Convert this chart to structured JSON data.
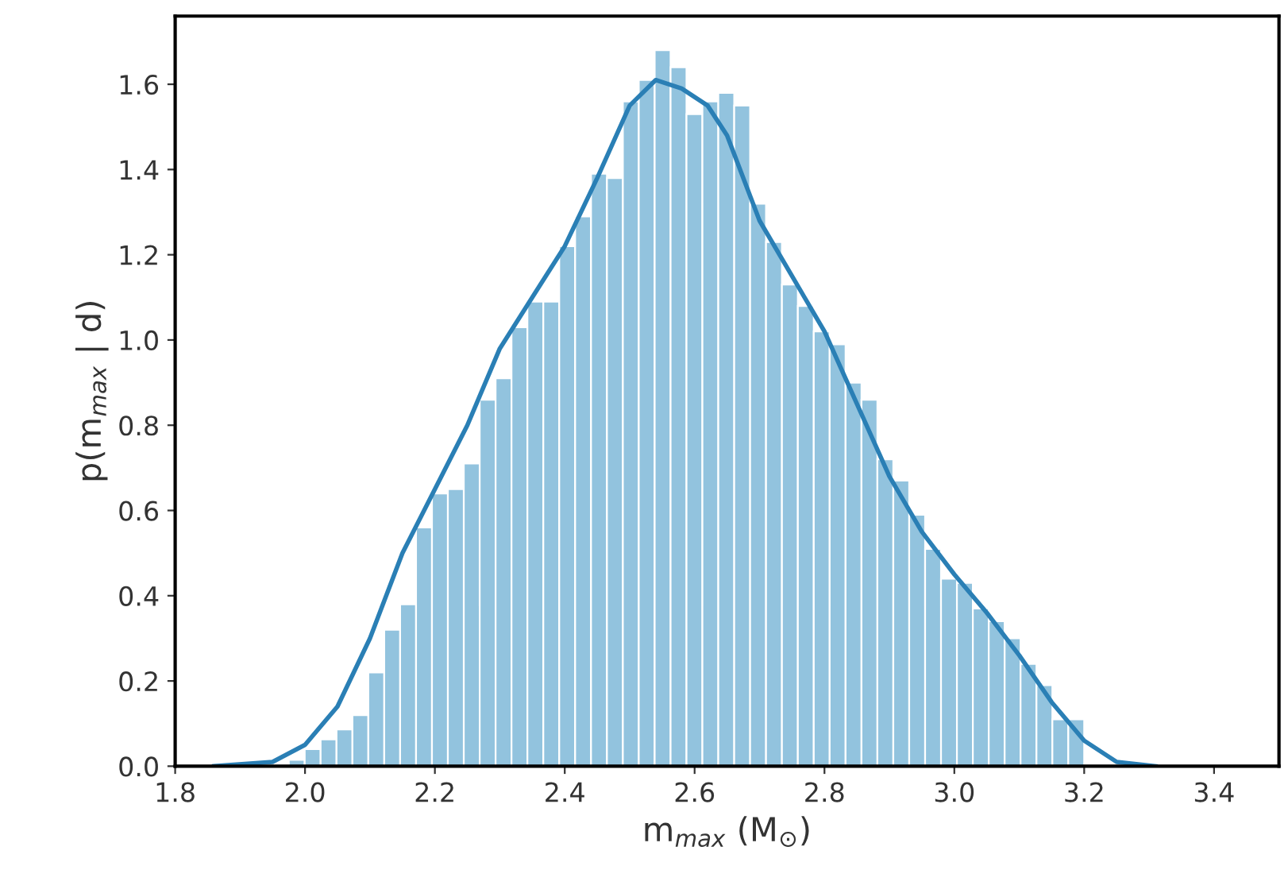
{
  "chart_data": {
    "type": "histogram",
    "xlabel": "m$_{max}$ (M$_{⊙}$)",
    "ylabel": "p(m$_{max}$ | d)",
    "bins": [
      1.975,
      1.9995,
      2.024,
      2.0485,
      2.073,
      2.0975,
      2.122,
      2.1465,
      2.171,
      2.1955,
      2.22,
      2.2445,
      2.269,
      2.2935,
      2.318,
      2.3425,
      2.367,
      2.3915,
      2.416,
      2.4405,
      2.465,
      2.4895,
      2.514,
      2.5385,
      2.563,
      2.5875,
      2.612,
      2.6365,
      2.661,
      2.6855,
      2.71,
      2.7345,
      2.759,
      2.7835,
      2.808,
      2.8325,
      2.857,
      2.8815,
      2.906,
      2.9305,
      2.955,
      2.9795,
      3.004,
      3.0285,
      3.053,
      3.0775,
      3.102,
      3.1265,
      3.151,
      3.1755,
      3.2
    ],
    "series": [
      {
        "color": "#92c3de",
        "values": [
          0.015,
          0.04,
          0.063,
          0.086,
          0.12,
          0.22,
          0.32,
          0.38,
          0.56,
          0.64,
          0.65,
          0.71,
          0.86,
          0.91,
          1.03,
          1.09,
          1.09,
          1.22,
          1.29,
          1.39,
          1.38,
          1.56,
          1.61,
          1.68,
          1.64,
          1.53,
          1.56,
          1.58,
          1.55,
          1.32,
          1.23,
          1.13,
          1.08,
          1.02,
          0.99,
          0.9,
          0.86,
          0.72,
          0.67,
          0.59,
          0.51,
          0.44,
          0.43,
          0.37,
          0.34,
          0.3,
          0.24,
          0.19,
          0.11,
          0.11
        ]
      },
      {
        "type": "line",
        "color": "#2a7fb5",
        "x": [
          1.86,
          1.95,
          2.0,
          2.05,
          2.1,
          2.15,
          2.2,
          2.25,
          2.3,
          2.35,
          2.4,
          2.45,
          2.5,
          2.54,
          2.58,
          2.62,
          2.65,
          2.7,
          2.75,
          2.8,
          2.85,
          2.9,
          2.95,
          3.0,
          3.05,
          3.1,
          3.15,
          3.2,
          3.25,
          3.31
        ],
        "values": [
          0,
          0.01,
          0.05,
          0.14,
          0.3,
          0.5,
          0.65,
          0.8,
          0.98,
          1.1,
          1.22,
          1.38,
          1.55,
          1.61,
          1.59,
          1.55,
          1.48,
          1.28,
          1.15,
          1.02,
          0.85,
          0.68,
          0.55,
          0.45,
          0.36,
          0.26,
          0.15,
          0.06,
          0.01,
          0
        ]
      }
    ],
    "xlim": [
      1.8,
      3.5
    ],
    "ylim": [
      0,
      1.76
    ],
    "xticks": [
      1.8,
      {
        "value": 2,
        "label": "2.0"
      },
      2.2,
      2.4,
      2.6,
      2.8,
      {
        "value": 3,
        "label": "3.0"
      },
      3.2,
      3.4
    ],
    "yticks": [
      {
        "value": 0,
        "label": "0.0"
      },
      0.2,
      0.4,
      0.6,
      0.8,
      {
        "value": 1,
        "label": "1.0"
      },
      1.2,
      1.4,
      1.6
    ]
  }
}
